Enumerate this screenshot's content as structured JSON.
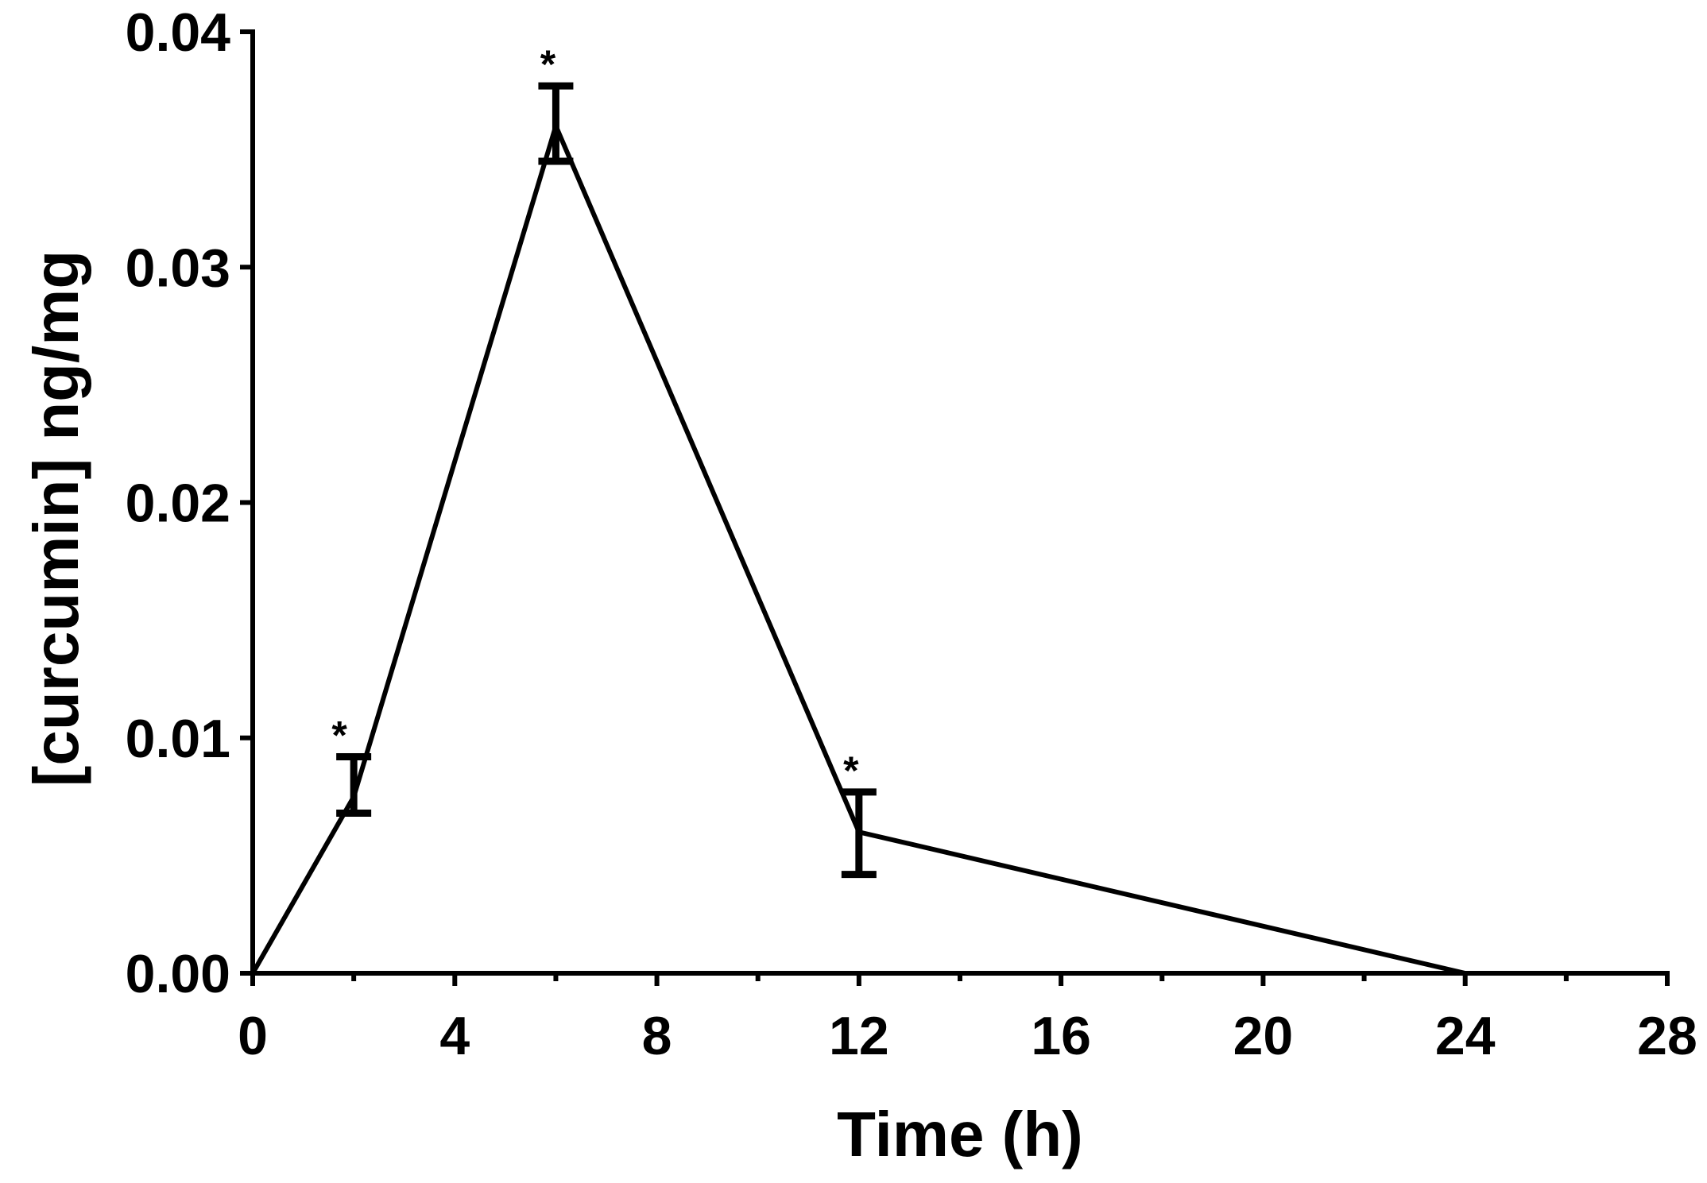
{
  "chart_data": {
    "type": "line",
    "title": "",
    "xlabel": "Time (h)",
    "ylabel": "[curcumin] ng/mg",
    "xlim": [
      0,
      28
    ],
    "ylim": [
      0,
      0.04
    ],
    "x_ticks": [
      0,
      4,
      8,
      12,
      16,
      20,
      24,
      28
    ],
    "x_tick_labels": [
      "0",
      "4",
      "8",
      "12",
      "16",
      "20",
      "24",
      "28"
    ],
    "y_ticks": [
      0,
      0.01,
      0.02,
      0.03,
      0.04
    ],
    "y_tick_labels": [
      "0.00",
      "0.01",
      "0.02",
      "0.03",
      "0.04"
    ],
    "x_minor_ticks": [
      2,
      6,
      10,
      14,
      18,
      22,
      26
    ],
    "grid": false,
    "legend": "none",
    "line_color": "#000000",
    "series": [
      {
        "x": [
          0,
          2,
          6,
          12,
          24
        ],
        "y": [
          0,
          0.0075,
          0.036,
          0.006,
          0
        ],
        "err_upper": [
          0,
          0.0092,
          0.0377,
          0.0077,
          0
        ],
        "err_lower": [
          0,
          0.0068,
          0.0345,
          0.0042,
          0
        ],
        "annotations": [
          "",
          "*",
          "*",
          "*",
          ""
        ]
      }
    ]
  }
}
